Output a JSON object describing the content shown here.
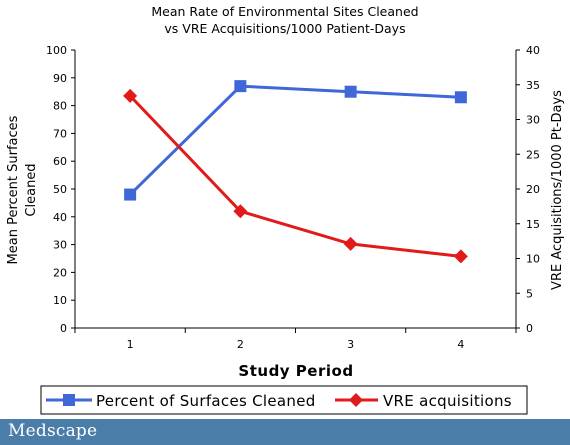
{
  "colors": {
    "series1": "#3f67d8",
    "series2": "#e11a1a",
    "footer_bg": "#4a7ea8"
  },
  "footer": {
    "logo": "Medscape"
  },
  "chart_data": {
    "type": "line",
    "title": [
      "Mean Rate of Environmental Sites Cleaned",
      "vs VRE Acquisitions/1000 Patient-Days"
    ],
    "xlabel": "Study Period",
    "ylabel_left": [
      "Mean Percent Surfaces",
      "Cleaned"
    ],
    "ylabel_right": "VRE Acquisitions/1000 Pt-Days",
    "categories": [
      "1",
      "2",
      "3",
      "4"
    ],
    "ylim_left": [
      0,
      100
    ],
    "ylim_right": [
      0,
      40
    ],
    "yticks_left": [
      "0",
      "10",
      "20",
      "30",
      "40",
      "50",
      "60",
      "70",
      "80",
      "90",
      "100"
    ],
    "yticks_right": [
      "0",
      "5",
      "10",
      "15",
      "20",
      "25",
      "30",
      "35",
      "40"
    ],
    "grid": false,
    "legend_position": "bottom",
    "series": [
      {
        "name": "Percent of Surfaces Cleaned",
        "axis": "left",
        "marker": "square",
        "color": "#3f67d8",
        "values": [
          48,
          87,
          85,
          83
        ]
      },
      {
        "name": "VRE acquisitions",
        "axis": "right",
        "marker": "diamond",
        "color": "#e11a1a",
        "values": [
          33.4,
          16.8,
          12.1,
          10.3
        ]
      }
    ]
  }
}
